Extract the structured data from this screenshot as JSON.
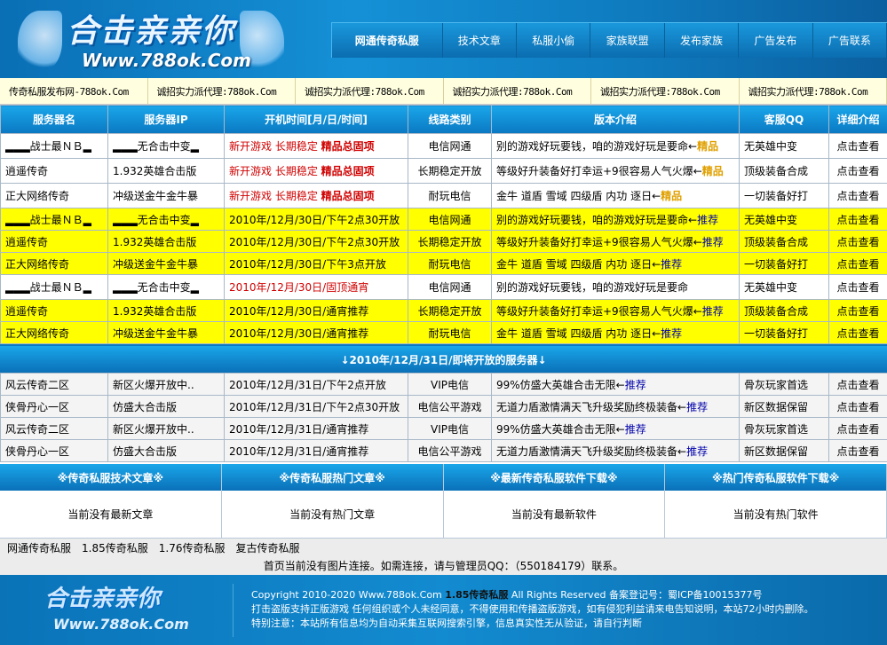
{
  "header": {
    "logo_text": "合击亲亲你",
    "logo_url": "Www.788ok.Com",
    "nav": [
      "网通传奇私服",
      "技术文章",
      "私服小偷",
      "家族联盟",
      "发布家族",
      "广告发布",
      "广告联系"
    ]
  },
  "ticker": [
    "传奇私服发布网-788ok.Com",
    "诚招实力派代理:788ok.Com",
    "诚招实力派代理:788ok.Com",
    "诚招实力派代理:788ok.Com",
    "诚招实力派代理:788ok.Com",
    "诚招实力派代理:788ok.Com"
  ],
  "table": {
    "headers": [
      "服务器名",
      "服务器IP",
      "开机时间[月/日/时间]",
      "线路类别",
      "版本介绍",
      "客服QQ",
      "详细介绍"
    ],
    "rows": [
      {
        "style": "w",
        "name": "▂▂▂战士最ＮＢ▂",
        "ip": "▂▂▂无合击中变▂",
        "time": "新开游戏 长期稳定 ",
        "time_strong": "精品总固项",
        "time_style": "red",
        "line": "电信网通",
        "desc": "别的游戏好玩要钱，咱的游戏好玩是要命←",
        "tag": "精品",
        "tag_type": "gold",
        "qq": "无英雄中变",
        "detail": "点击查看"
      },
      {
        "style": "w",
        "name": "逍遥传奇",
        "ip": "1.932英雄合击版",
        "time": "新开游戏 长期稳定 ",
        "time_strong": "精品总固项",
        "time_style": "red",
        "line": "长期稳定开放",
        "desc": "等级好升装备好打幸运+9很容易人气火爆←",
        "tag": "精品",
        "tag_type": "gold",
        "qq": "顶级装备合成",
        "detail": "点击查看"
      },
      {
        "style": "w",
        "name": "正大网络传奇",
        "ip": "冲级送金牛金牛暴",
        "time": "新开游戏 长期稳定 ",
        "time_strong": "精品总固项",
        "time_style": "red",
        "line": "耐玩电信",
        "desc": "金牛 道盾 雪域 四级盾 内功 逐日←",
        "tag": "精品",
        "tag_type": "gold",
        "qq": "一切装备好打",
        "detail": "点击查看"
      },
      {
        "style": "y",
        "name": "▂▂▂战士最ＮＢ▂",
        "ip": "▂▂▂无合击中变▂",
        "time": "2010年/12月/30日/下午2点30开放",
        "time_strong": "",
        "time_style": "",
        "line": "电信网通",
        "desc": "别的游戏好玩要钱，咱的游戏好玩是要命←",
        "tag": "推荐",
        "tag_type": "blue",
        "qq": "无英雄中变",
        "detail": "点击查看"
      },
      {
        "style": "y",
        "name": "逍遥传奇",
        "ip": "1.932英雄合击版",
        "time": "2010年/12月/30日/下午2点30开放",
        "time_strong": "",
        "time_style": "",
        "line": "长期稳定开放",
        "desc": "等级好升装备好打幸运+9很容易人气火爆←",
        "tag": "推荐",
        "tag_type": "blue",
        "qq": "顶级装备合成",
        "detail": "点击查看"
      },
      {
        "style": "y",
        "name": "正大网络传奇",
        "ip": "冲级送金牛金牛暴",
        "time": "2010年/12月/30日/下午3点开放",
        "time_strong": "",
        "time_style": "",
        "line": "耐玩电信",
        "desc": "金牛 道盾 雪域 四级盾 内功 逐日←",
        "tag": "推荐",
        "tag_type": "blue",
        "qq": "一切装备好打",
        "detail": "点击查看"
      },
      {
        "style": "w2",
        "name": "▂▂▂战士最ＮＢ▂",
        "ip": "▂▂▂无合击中变▂",
        "time": "2010年/12月/30日/固顶通宵",
        "time_strong": "",
        "time_style": "red",
        "line": "电信网通",
        "desc": "别的游戏好玩要钱，咱的游戏好玩是要命",
        "tag": "",
        "tag_type": "",
        "qq": "无英雄中变",
        "detail": "点击查看"
      },
      {
        "style": "y",
        "name": "逍遥传奇",
        "ip": "1.932英雄合击版",
        "time": "2010年/12月/30日/通宵推荐",
        "time_strong": "",
        "time_style": "",
        "line": "长期稳定开放",
        "desc": "等级好升装备好打幸运+9很容易人气火爆←",
        "tag": "推荐",
        "tag_type": "blue",
        "qq": "顶级装备合成",
        "detail": "点击查看"
      },
      {
        "style": "y",
        "name": "正大网络传奇",
        "ip": "冲级送金牛金牛暴",
        "time": "2010年/12月/30日/通宵推荐",
        "time_strong": "",
        "time_style": "",
        "line": "耐玩电信",
        "desc": "金牛 道盾 雪域 四级盾 内功 逐日←",
        "tag": "推荐",
        "tag_type": "blue",
        "qq": "一切装备好打",
        "detail": "点击查看"
      }
    ]
  },
  "upcoming": {
    "title": "↓2010年/12月/31日/即将开放的服务器↓",
    "rows": [
      {
        "name": "风云传奇二区",
        "ip": "新区火爆开放中..",
        "time": "2010年/12月/31日/下午2点开放",
        "line": "VIP电信",
        "desc": "99%仿盛大英雄合击无限←",
        "tag": "推荐",
        "qq": "骨灰玩家首选",
        "detail": "点击查看"
      },
      {
        "name": "侠骨丹心一区",
        "ip": "仿盛大合击版",
        "time": "2010年/12月/31日/下午2点30开放",
        "line": "电信公平游戏",
        "desc": "无道力盾激情满天飞升级奖励终极装备←",
        "tag": "推荐",
        "qq": "新区数据保留",
        "detail": "点击查看"
      },
      {
        "name": "风云传奇二区",
        "ip": "新区火爆开放中..",
        "time": "2010年/12月/31日/通宵推荐",
        "line": "VIP电信",
        "desc": "99%仿盛大英雄合击无限←",
        "tag": "推荐",
        "qq": "骨灰玩家首选",
        "detail": "点击查看"
      },
      {
        "name": "侠骨丹心一区",
        "ip": "仿盛大合击版",
        "time": "2010年/12月/31日/通宵推荐",
        "line": "电信公平游戏",
        "desc": "无道力盾激情满天飞升级奖励终极装备←",
        "tag": "推荐",
        "qq": "新区数据保留",
        "detail": "点击查看"
      }
    ]
  },
  "columns": [
    {
      "title": "※传奇私服技术文章※",
      "body": "当前没有最新文章"
    },
    {
      "title": "※传奇私服热门文章※",
      "body": "当前没有热门文章"
    },
    {
      "title": "※最新传奇私服软件下载※",
      "body": "当前没有最新软件"
    },
    {
      "title": "※热门传奇私服软件下载※",
      "body": "当前没有热门软件"
    }
  ],
  "links": [
    "网通传奇私服",
    "1.85传奇私服",
    "1.76传奇私服",
    "复古传奇私服"
  ],
  "notice": "首页当前没有图片连接。如需连接，请与管理员QQ：（550184179）联系。",
  "footer": {
    "logo_text": "合击亲亲你",
    "logo_url": "Www.788ok.Com",
    "copyright_pre": "Copyright 2010-2020 Www.788ok.Com ",
    "copyright_strong": "1.85传奇私服",
    "copyright_post": " All Rights Reserved 备案登记号：蜀ICP备10015377号",
    "line2": "打击盗版支持正版游戏 任何组织或个人未经同意，不得使用和传播盗版游戏，如有侵犯利益请来电告知说明，本站72小时内删除。",
    "line3": "特别注意：本站所有信息均为自动采集互联网搜索引擎，信息真实性无从验证，请自行判断"
  },
  "colors": {
    "accent": "#0a78c2",
    "highlight": "#ffff00",
    "red": "#d00000",
    "tag_blue": "#0000aa",
    "tag_gold": "#e0a000"
  }
}
